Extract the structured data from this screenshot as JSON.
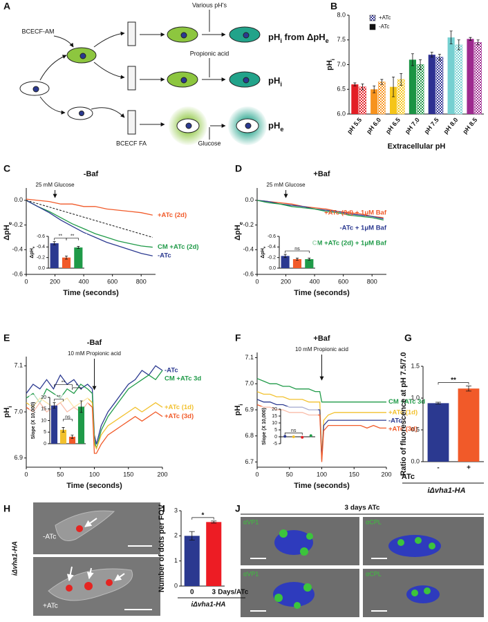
{
  "panel_a": {
    "letter": "A",
    "bcecf_am": "BCECF-AM",
    "various_ph": "Various pH's",
    "readout_1": [
      "pH",
      {
        "sub": "i"
      },
      " from ΔpH",
      {
        "sub": "e"
      }
    ],
    "propionic_acid": "Propionic acid",
    "readout_2": [
      "pH",
      {
        "sub": "i"
      }
    ],
    "readout_3": [
      "pH",
      {
        "sub": "e"
      }
    ],
    "bcecf_fa": "BCECF FA",
    "glucose": "Glucose"
  },
  "chart_data": [
    {
      "panel": "B",
      "type": "bar",
      "categories": [
        "pH 5.5",
        "pH 6.0",
        "pH 6.5",
        "pH 7.0",
        "pH 7.5",
        "pH 8.0",
        "pH 8.5"
      ],
      "colors": [
        "#e31e25",
        "#f7931e",
        "#f5c518",
        "#1b9444",
        "#2e3192",
        "#75d0d1",
        "#9e2a8f"
      ],
      "series": [
        {
          "name": "-ATc",
          "pattern": "solid",
          "values": [
            6.6,
            6.5,
            6.55,
            7.1,
            7.2,
            7.55,
            7.52
          ],
          "errors": [
            0.03,
            0.07,
            0.2,
            0.12,
            0.05,
            0.13,
            0.03
          ]
        },
        {
          "name": "+ATc",
          "pattern": "checker",
          "values": [
            6.55,
            6.65,
            6.7,
            7.0,
            7.15,
            7.4,
            7.45
          ],
          "errors": [
            0.06,
            0.05,
            0.12,
            0.1,
            0.06,
            0.1,
            0.05
          ]
        }
      ],
      "ylabel": [
        "pH",
        {
          "sub": "i"
        }
      ],
      "xlabel": "Extracellular pH",
      "ylim": [
        6,
        8
      ],
      "yticks": [
        {
          "value": 6,
          "label": "6.0"
        },
        6.5,
        {
          "value": 7,
          "label": "7.0"
        },
        7.5,
        {
          "value": 8,
          "label": "8.0"
        }
      ]
    },
    {
      "panel": "C",
      "type": "line",
      "title": "-Baf",
      "x": [
        0,
        80,
        160,
        240,
        320,
        400,
        480,
        560,
        640,
        720,
        800,
        880
      ],
      "series": [
        {
          "name": "+ATc (2d)",
          "color": "#f15a29",
          "values": [
            0.01,
            0.0,
            -0.01,
            -0.03,
            -0.03,
            -0.05,
            -0.05,
            -0.07,
            -0.08,
            -0.09,
            -0.1,
            -0.12
          ]
        },
        {
          "name": "CM +ATc (2d)",
          "color": "#1f9a48",
          "values": [
            0.0,
            -0.05,
            -0.09,
            -0.14,
            -0.19,
            -0.23,
            -0.27,
            -0.3,
            -0.33,
            -0.35,
            -0.37,
            -0.38
          ]
        },
        {
          "name": "-ATc",
          "color": "#2b3990",
          "values": [
            0.0,
            -0.05,
            -0.1,
            -0.16,
            -0.21,
            -0.26,
            -0.3,
            -0.34,
            -0.37,
            -0.4,
            -0.43,
            -0.45
          ]
        }
      ],
      "reference": {
        "x": [
          0,
          880
        ],
        "values": [
          0,
          -0.3
        ]
      },
      "annotation": {
        "text": "25 mM Glucose",
        "x": 200
      },
      "xlabel": "Time (seconds)",
      "ylabel": [
        "ΔpH",
        {
          "sub": "e"
        }
      ],
      "xlim": [
        0,
        900
      ],
      "xticks": [
        0,
        200,
        400,
        600,
        800
      ],
      "ylim": [
        -0.6,
        0.1
      ],
      "yticks": [
        {
          "value": 0,
          "label": "0.0"
        },
        -0.2,
        -0.4,
        -0.6
      ],
      "series_labels": "end",
      "inset": {
        "type": "bar",
        "ylabel": [
          "ΔpH",
          {
            "sub": "e"
          }
        ],
        "ylim": [
          0,
          -0.6
        ],
        "yticks": [
          {
            "value": 0,
            "label": "0.0"
          },
          -0.2,
          -0.4,
          -0.6
        ],
        "values": [
          -0.47,
          -0.2,
          -0.39
        ],
        "errors": [
          0.03,
          0.03,
          0.02
        ],
        "colors": [
          "#2b3990",
          "#f15a29",
          "#1f9a48"
        ],
        "significance": [
          {
            "label": "**",
            "from": 0,
            "to": 1
          },
          {
            "label": "**",
            "from": 1,
            "to": 2
          }
        ]
      }
    },
    {
      "panel": "D",
      "type": "line",
      "title": "+Baf",
      "x": [
        0,
        80,
        160,
        240,
        320,
        400,
        480,
        560,
        640,
        720,
        800,
        880
      ],
      "series": [
        {
          "name": "+ATc (2d) + 1μM Baf",
          "color": "#f15a29",
          "values": [
            0.0,
            -0.01,
            -0.02,
            -0.03,
            -0.05,
            -0.06,
            -0.07,
            -0.09,
            -0.1,
            -0.11,
            -0.13,
            -0.14
          ]
        },
        {
          "name": "-ATc + 1μM Baf",
          "color": "#2b3990",
          "values": [
            0.0,
            -0.01,
            -0.03,
            -0.04,
            -0.05,
            -0.07,
            -0.08,
            -0.09,
            -0.11,
            -0.12,
            -0.13,
            -0.15
          ]
        },
        {
          "name": "CM +ATc (2d) + 1μM Baf",
          "color": "#1f9a48",
          "values": [
            0.0,
            -0.02,
            -0.03,
            -0.05,
            -0.06,
            -0.07,
            -0.09,
            -0.1,
            -0.12,
            -0.13,
            -0.14,
            -0.16
          ]
        }
      ],
      "annotation": {
        "text": "25 mM Glucose",
        "x": 200
      },
      "xlabel": "Time (seconds)",
      "ylabel": [
        "ΔpH",
        {
          "sub": "e"
        }
      ],
      "xlim": [
        0,
        900
      ],
      "xticks": [
        0,
        200,
        400,
        600,
        800
      ],
      "ylim": [
        -0.6,
        0.1
      ],
      "yticks": [
        {
          "value": 0,
          "label": "0.0"
        },
        -0.2,
        -0.4,
        -0.6
      ],
      "series_labels": "inside",
      "inset": {
        "type": "bar",
        "ylabel": [
          "ΔpH",
          {
            "sub": "e"
          }
        ],
        "ylim": [
          0,
          -0.6
        ],
        "yticks": [
          {
            "value": 0,
            "label": "0.0"
          },
          -0.2,
          -0.4,
          -0.6
        ],
        "values": [
          -0.23,
          -0.17,
          -0.17
        ],
        "errors": [
          0.03,
          0.02,
          0.02
        ],
        "colors": [
          "#2b3990",
          "#f15a29",
          "#1f9a48"
        ],
        "significance": [
          {
            "label": "ns",
            "from": 0,
            "to": 2
          }
        ]
      }
    },
    {
      "panel": "E",
      "type": "line",
      "title": "-Baf",
      "x": [
        0,
        10,
        20,
        30,
        40,
        50,
        60,
        70,
        80,
        90,
        97,
        100,
        103,
        110,
        120,
        130,
        140,
        150,
        160,
        170,
        180,
        190,
        200
      ],
      "series": [
        {
          "name": "-ATc",
          "color": "#2b3990",
          "values": [
            7.04,
            7.06,
            7.05,
            7.07,
            7.05,
            7.08,
            7.06,
            7.07,
            7.05,
            7.06,
            7.05,
            6.95,
            6.93,
            6.97,
            7.0,
            7.02,
            7.04,
            7.06,
            7.07,
            7.09,
            7.08,
            7.1,
            7.09
          ]
        },
        {
          "name": "CM +ATc 3d",
          "color": "#1f9a48",
          "values": [
            7.03,
            7.04,
            7.02,
            7.05,
            7.04,
            7.03,
            7.05,
            7.04,
            7.06,
            7.05,
            7.04,
            6.94,
            6.92,
            6.96,
            6.99,
            7.01,
            7.03,
            7.05,
            7.06,
            7.07,
            7.08,
            7.07,
            7.09
          ]
        },
        {
          "name": "+ATc (1d)",
          "color": "#f2c12e",
          "values": [
            7.02,
            7.01,
            7.03,
            7.02,
            7.01,
            7.02,
            7.03,
            7.01,
            7.02,
            7.03,
            7.02,
            6.93,
            6.92,
            6.95,
            6.97,
            6.98,
            6.99,
            7.0,
            7.01,
            7.0,
            7.01,
            7.02,
            7.01
          ]
        },
        {
          "name": "+ATc (3d)",
          "color": "#f15a29",
          "values": [
            7.01,
            7.0,
            7.02,
            7.0,
            7.01,
            7.02,
            7.0,
            7.01,
            7.0,
            7.02,
            7.01,
            6.91,
            6.91,
            6.93,
            6.95,
            6.96,
            6.97,
            6.98,
            6.99,
            6.98,
            6.99,
            7.0,
            6.99
          ]
        }
      ],
      "annotation": {
        "text": "10 mM Propionic acid",
        "x": 100
      },
      "xlabel": "Time (seconds)",
      "ylabel": [
        "pH",
        {
          "sub": "i"
        }
      ],
      "xlim": [
        0,
        200
      ],
      "xticks": [
        0,
        50,
        100,
        150,
        200
      ],
      "ylim": [
        6.88,
        7.12
      ],
      "yticks": [
        6.9,
        {
          "value": 7,
          "label": "7.0"
        },
        7.1
      ],
      "series_labels": "end",
      "inset": {
        "type": "bar",
        "ylabel": "Slope (X 10,000)",
        "ylim": [
          0,
          20
        ],
        "yticks": [
          0,
          5,
          10,
          15,
          20
        ],
        "values": [
          16.5,
          6,
          3,
          16
        ],
        "errors": [
          1.2,
          1,
          0.7,
          2.5
        ],
        "colors": [
          "#2b3990",
          "#f2c12e",
          "#f15a29",
          "#1f9a48"
        ],
        "significance": [
          {
            "label": "**",
            "from": 0,
            "to": 1
          },
          {
            "label": "ns",
            "from": 1,
            "to": 2
          },
          {
            "label": "*",
            "from": 2,
            "to": 3
          },
          {
            "label": "**",
            "from": 0,
            "to": 2
          }
        ]
      }
    },
    {
      "panel": "F",
      "type": "line",
      "title": "+Baf",
      "x": [
        0,
        10,
        20,
        30,
        40,
        50,
        60,
        70,
        80,
        90,
        97,
        100,
        103,
        110,
        120,
        130,
        140,
        150,
        160,
        170,
        180,
        190,
        200
      ],
      "series": [
        {
          "name": "CM +ATc 3d",
          "color": "#1f9a48",
          "values": [
            7.02,
            7.01,
            7.0,
            7.0,
            6.99,
            6.99,
            6.98,
            6.98,
            6.98,
            6.97,
            6.97,
            6.93,
            6.93,
            6.93,
            6.93,
            6.93,
            6.93,
            6.93,
            6.93,
            6.93,
            6.93,
            6.93,
            6.93
          ]
        },
        {
          "name": "+ATc (1d)",
          "color": "#f2c12e",
          "values": [
            6.97,
            6.96,
            6.96,
            6.95,
            6.95,
            6.94,
            6.94,
            6.94,
            6.93,
            6.93,
            6.93,
            6.72,
            6.86,
            6.88,
            6.89,
            6.89,
            6.89,
            6.89,
            6.89,
            6.89,
            6.89,
            6.89,
            6.89
          ]
        },
        {
          "name": "-ATc",
          "color": "#2b3990",
          "values": [
            6.94,
            6.93,
            6.93,
            6.92,
            6.92,
            6.91,
            6.91,
            6.91,
            6.9,
            6.9,
            6.9,
            6.71,
            6.84,
            6.86,
            6.86,
            6.86,
            6.86,
            6.86,
            6.86,
            6.86,
            6.86,
            6.86,
            6.86
          ]
        },
        {
          "name": "+ATc (3d)",
          "color": "#f15a29",
          "values": [
            6.92,
            6.91,
            6.91,
            6.9,
            6.9,
            6.89,
            6.89,
            6.89,
            6.88,
            6.88,
            6.88,
            6.7,
            6.82,
            6.84,
            6.84,
            6.84,
            6.84,
            6.84,
            6.84,
            6.83,
            6.84,
            6.83,
            6.83
          ]
        }
      ],
      "annotation": {
        "text": "10 mM Propionic acid",
        "x": 100
      },
      "xlabel": "Time (seconds)",
      "ylabel": [
        "pH",
        {
          "sub": "i"
        }
      ],
      "xlim": [
        0,
        200
      ],
      "xticks": [
        0,
        50,
        100,
        150,
        200
      ],
      "ylim": [
        6.68,
        7.12
      ],
      "yticks": [
        6.7,
        6.8,
        6.9,
        {
          "value": 7,
          "label": "7.0"
        },
        7.1
      ],
      "series_labels": "end",
      "inset": {
        "type": "dot",
        "ylabel": "Slope (X 10,000)",
        "ylim": [
          -5,
          20
        ],
        "yticks": [
          -5,
          0,
          5,
          10,
          15,
          20
        ],
        "values": [
          0.3,
          0,
          -0.4,
          0.8
        ],
        "colors": [
          "#2b3990",
          "#f2c12e",
          "#e31e25",
          "#1f9a48"
        ],
        "significance": [
          {
            "label": "ns",
            "from": 0,
            "to": 2
          }
        ]
      }
    },
    {
      "panel": "G",
      "type": "bar",
      "categories": [
        "-",
        "+"
      ],
      "values": [
        0.92,
        1.15
      ],
      "errors": [
        0.015,
        0.04
      ],
      "colors": [
        "#2b3990",
        "#f15a29"
      ],
      "ylabel": "Ratio of fluorescence at pH 7.5/7.0",
      "xlabel": "ATc",
      "strain": "iΔvha1-HA",
      "ylim": [
        0,
        1.5
      ],
      "yticks": [
        {
          "value": 0,
          "label": "0.0"
        },
        0.5,
        {
          "value": 1,
          "label": "1.0"
        },
        1.5
      ],
      "significance": [
        {
          "label": "**",
          "from": 0,
          "to": 1
        }
      ]
    },
    {
      "panel": "I",
      "type": "bar",
      "categories": [
        "0",
        "3"
      ],
      "values": [
        2.0,
        2.55
      ],
      "errors": [
        0.17,
        0.04
      ],
      "colors": [
        "#2b3990",
        "#ed1c24"
      ],
      "ylabel": "Number of dots per FOV",
      "xlabel": "Days/ATc",
      "strain": "iΔvha1-HA",
      "ylim": [
        0,
        3
      ],
      "yticks": [
        0,
        1,
        2,
        3
      ],
      "significance": [
        {
          "label": "*",
          "from": 0,
          "to": 1
        }
      ]
    }
  ],
  "panel_h": {
    "letter": "H",
    "labels": [
      "-ATc",
      "+ATc"
    ],
    "strain": "iΔvha1-HA"
  },
  "panel_j": {
    "letter": "J",
    "title": "3 days ATc",
    "labels": [
      "αVP1",
      "αCPL",
      "αVP1",
      "αCPL"
    ]
  }
}
